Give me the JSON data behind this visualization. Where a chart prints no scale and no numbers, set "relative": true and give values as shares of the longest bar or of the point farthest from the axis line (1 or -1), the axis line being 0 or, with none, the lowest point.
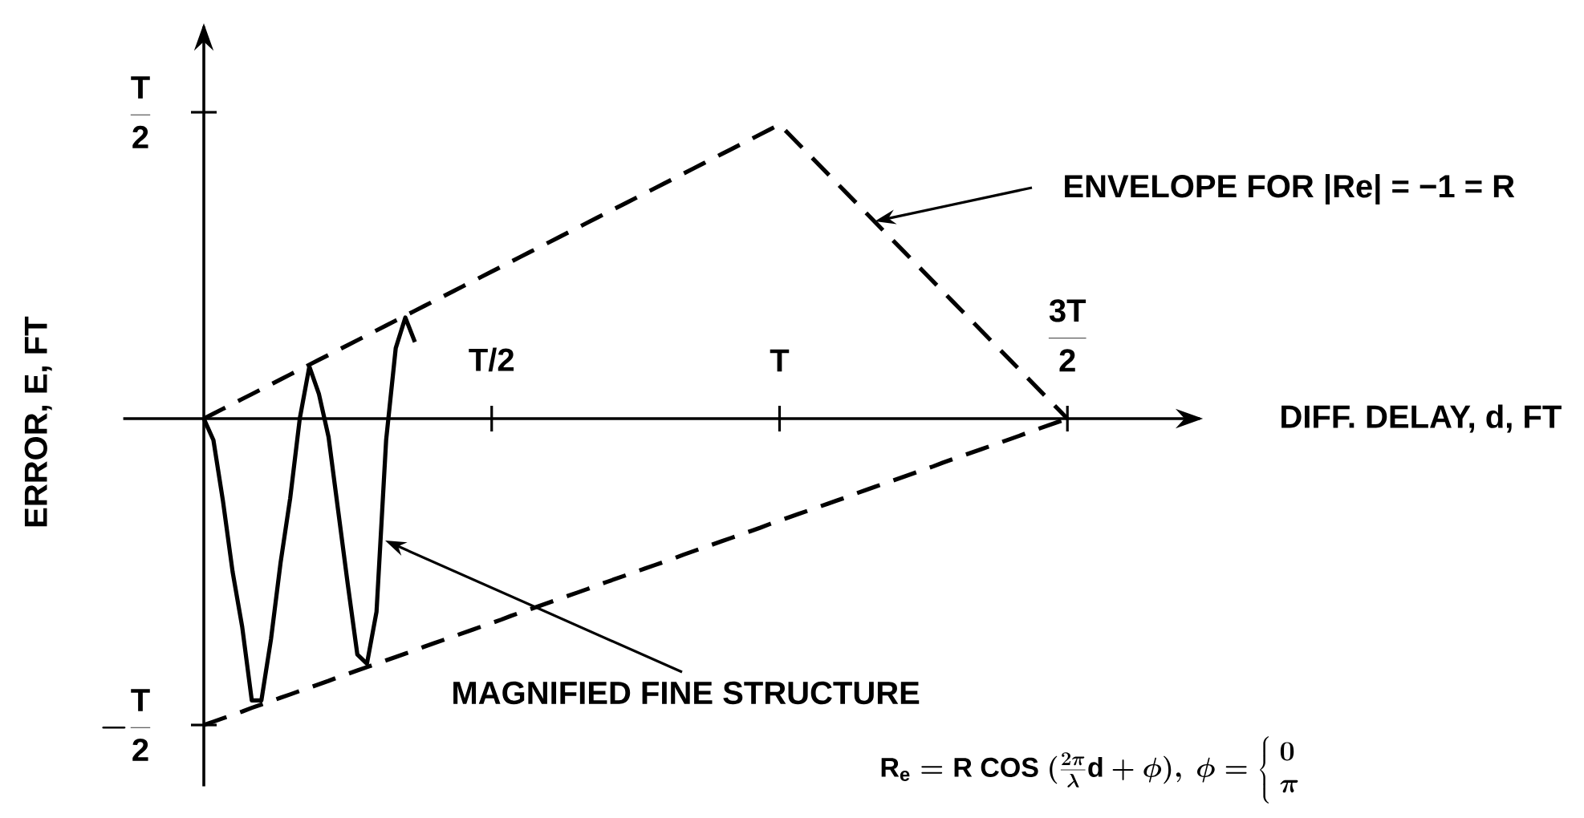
{
  "chart_data": {
    "type": "line",
    "relative": true,
    "ylabel": "ERROR, E, FT",
    "categories": [
      null,
      null,
      null,
      null,
      null,
      null,
      null,
      null,
      null,
      null,
      null,
      null,
      null,
      null,
      null,
      null,
      null,
      null,
      null,
      null,
      null,
      null,
      null,
      null,
      null,
      null,
      null,
      null,
      null,
      null,
      "T/2",
      null,
      null,
      null,
      null,
      null,
      null,
      null,
      null,
      null,
      null,
      null,
      null,
      null,
      null,
      null,
      null,
      null,
      null,
      null,
      null,
      null,
      null,
      null,
      null,
      null,
      null,
      null,
      null,
      null,
      "T",
      null,
      null,
      null,
      null,
      null,
      null,
      null,
      null,
      null,
      null,
      null,
      null,
      null,
      null,
      null,
      null,
      null,
      null,
      null,
      null,
      null,
      null,
      null,
      null,
      null,
      null,
      null,
      null,
      null,
      "\\mathrm{\\frac{3T}{2}}"
    ],
    "series": [
      {
        "color": "#000000",
        "line_style": "dashed",
        "values": [
          0,
          0.016,
          0.032,
          0.048,
          0.064,
          0.08,
          0.096,
          0.112,
          0.128,
          0.144,
          0.16,
          0.176,
          0.192,
          0.208,
          0.224,
          0.24,
          0.256,
          0.272,
          0.288,
          0.304,
          0.32,
          0.336,
          0.352,
          0.368,
          0.384,
          0.4,
          0.416,
          0.432,
          0.448,
          0.464,
          0.48,
          0.496,
          0.512,
          0.528,
          0.544,
          0.56,
          0.576,
          0.592,
          0.608,
          0.624,
          0.64,
          0.656,
          0.672,
          0.688,
          0.704,
          0.72,
          0.736,
          0.752,
          0.768,
          0.784,
          0.8,
          0.816,
          0.832,
          0.848,
          0.864,
          0.88,
          0.896,
          0.912,
          0.928,
          0.944,
          0.96,
          0.928,
          0.896,
          0.864,
          0.832,
          0.8,
          0.768,
          0.736,
          0.704,
          0.672,
          0.64,
          0.608,
          0.576,
          0.544,
          0.512,
          0.48,
          0.448,
          0.416,
          0.384,
          0.352,
          0.32,
          0.288,
          0.256,
          0.224,
          0.192,
          0.16,
          0.128,
          0.096,
          0.064,
          0.032,
          0
        ]
      },
      {
        "color": "#000000",
        "line_style": "dashed",
        "values": [
          -1,
          -0.989,
          -0.978,
          -0.967,
          -0.956,
          -0.944,
          -0.933,
          -0.922,
          -0.911,
          -0.9,
          -0.889,
          -0.878,
          -0.867,
          -0.856,
          -0.844,
          -0.833,
          -0.822,
          -0.811,
          -0.8,
          -0.789,
          -0.778,
          -0.767,
          -0.756,
          -0.744,
          -0.733,
          -0.722,
          -0.711,
          -0.7,
          -0.689,
          -0.678,
          -0.667,
          -0.656,
          -0.644,
          -0.633,
          -0.622,
          -0.611,
          -0.6,
          -0.589,
          -0.578,
          -0.567,
          -0.556,
          -0.544,
          -0.533,
          -0.522,
          -0.511,
          -0.5,
          -0.489,
          -0.478,
          -0.467,
          -0.456,
          -0.444,
          -0.433,
          -0.422,
          -0.411,
          -0.4,
          -0.389,
          -0.378,
          -0.367,
          -0.356,
          -0.344,
          -0.333,
          -0.322,
          -0.311,
          -0.3,
          -0.289,
          -0.278,
          -0.267,
          -0.256,
          -0.244,
          -0.233,
          -0.222,
          -0.211,
          -0.2,
          -0.189,
          -0.178,
          -0.167,
          -0.156,
          -0.144,
          -0.133,
          -0.122,
          -0.111,
          -0.1,
          -0.089,
          -0.078,
          -0.067,
          -0.056,
          -0.044,
          -0.033,
          -0.022,
          -0.011,
          0
        ]
      },
      {
        "color": "#000000",
        "line_style": "solid",
        "values": [
          0,
          -0.07,
          -0.27,
          -0.5,
          -0.68,
          -0.92,
          -0.92,
          -0.72,
          -0.47,
          -0.26,
          0,
          0.17,
          0.08,
          -0.06,
          -0.3,
          -0.54,
          -0.77,
          -0.8,
          -0.63,
          -0.07,
          0.23,
          0.33,
          0.25,
          null,
          null,
          null,
          null,
          null,
          null,
          null,
          null,
          null,
          null,
          null,
          null,
          null,
          null,
          null,
          null,
          null,
          null,
          null,
          null,
          null,
          null,
          null,
          null,
          null,
          null,
          null,
          null,
          null,
          null,
          null,
          null,
          null,
          null,
          null,
          null,
          null,
          null,
          null,
          null,
          null,
          null,
          null,
          null,
          null,
          null,
          null,
          null,
          null,
          null,
          null,
          null,
          null,
          null,
          null,
          null,
          null,
          null,
          null,
          null,
          null,
          null,
          null,
          null,
          null,
          null,
          null,
          null
        ]
      }
    ],
    "annotations": [
      "ENVELOPE FOR |Re| = −1 = R",
      "DIFF. DELAY, d, FT",
      "MAGNIFIED FINE STRUCTURE",
      "\\mathrm{R}_{\\mathrm{e}} = \\mathrm{R\\ COS}\\ (\\frac{2\\pi}{\\lambda}\\mathrm{d} + \\phi),\\ \\phi = \\left\\{\\begin{array}{l}0\\\\ \\pi\\end{array}\\right.",
      "\\mathrm{\\frac{T}{2}}",
      "-\\mathrm{\\frac{T}{2}}"
    ]
  }
}
